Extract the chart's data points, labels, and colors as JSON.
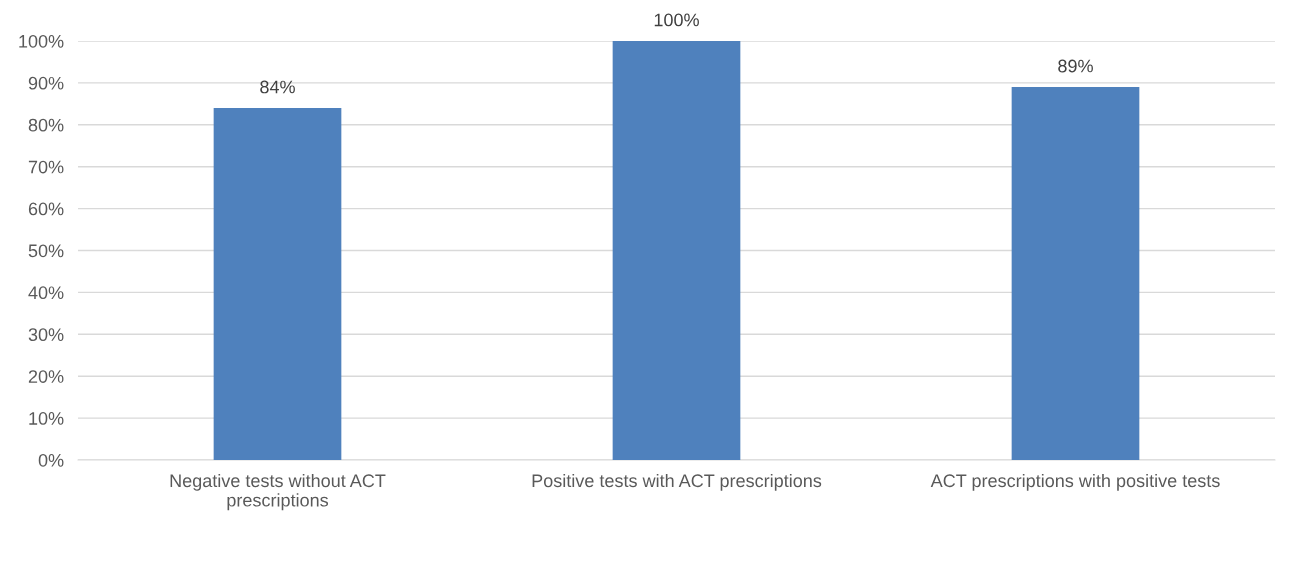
{
  "chart_data": {
    "type": "bar",
    "categories": [
      "Negative tests without ACT\nprescriptions",
      "Positive tests with ACT prescriptions",
      "ACT prescriptions with positive tests"
    ],
    "values": [
      84,
      100,
      89
    ],
    "color": "#4f81bd",
    "ylim": [
      0,
      100
    ],
    "yticks": [
      {
        "value": 0,
        "label": "0%"
      },
      {
        "value": 10,
        "label": "10%"
      },
      {
        "value": 20,
        "label": "20%"
      },
      {
        "value": 30,
        "label": "30%"
      },
      {
        "value": 40,
        "label": "40%"
      },
      {
        "value": 50,
        "label": "50%"
      },
      {
        "value": 60,
        "label": "60%"
      },
      {
        "value": 70,
        "label": "70%"
      },
      {
        "value": 80,
        "label": "80%"
      },
      {
        "value": 90,
        "label": "90%"
      },
      {
        "value": 100,
        "label": "100%"
      }
    ],
    "value_labels": [
      "84%",
      "100%",
      "89%"
    ],
    "grid": "y",
    "legend": false
  }
}
